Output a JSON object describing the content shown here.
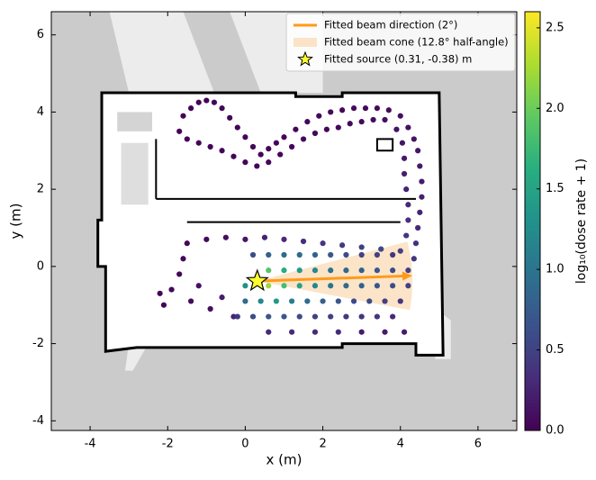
{
  "chart_data": {
    "type": "scatter",
    "xlabel": "x (m)",
    "ylabel": "y (m)",
    "xlim": [
      -5,
      7
    ],
    "ylim": [
      -4.25,
      6.6
    ],
    "xticks": [
      -4,
      -2,
      0,
      2,
      4,
      6
    ],
    "yticks": [
      -4,
      -2,
      0,
      2,
      4,
      6
    ],
    "colormap": "viridis",
    "clim": [
      0,
      2.6
    ],
    "colorbar_label": "log₁₀(dose rate + 1)",
    "colorbar_ticks": [
      {
        "value": 0,
        "label": "0.0"
      },
      {
        "value": 0.5,
        "label": "0.5"
      },
      {
        "value": 1,
        "label": "1.0"
      },
      {
        "value": 1.5,
        "label": "1.5"
      },
      {
        "value": 2,
        "label": "2.0"
      },
      {
        "value": 2.5,
        "label": "2.5"
      }
    ],
    "x": [
      -1.6,
      -1.4,
      -1.2,
      -1.0,
      -0.8,
      -0.6,
      -0.4,
      -0.2,
      0,
      0.2,
      0.4,
      0.6,
      0.8,
      1.0,
      1.3,
      1.6,
      1.9,
      2.2,
      2.5,
      2.8,
      3.1,
      3.4,
      3.7,
      4.0,
      4.2,
      4.35,
      4.45,
      4.5,
      4.55,
      4.55,
      4.5,
      4.45,
      4.4,
      4.35,
      -1.7,
      -1.5,
      -1.2,
      -0.9,
      -0.6,
      -0.3,
      0,
      0.3,
      0.6,
      0.9,
      1.2,
      1.5,
      1.8,
      2.1,
      2.4,
      2.7,
      3.0,
      3.3,
      3.6,
      3.9,
      4.05,
      4.1,
      4.1,
      4.15,
      4.2,
      4.2,
      4.15,
      -1.5,
      -1.0,
      -0.5,
      0,
      0.5,
      1.0,
      1.5,
      2.0,
      2.5,
      3.0,
      3.5,
      4.0,
      -1.6,
      -1.7,
      -1.9,
      -2.1,
      -2.2,
      -1.4,
      -1.2,
      -0.9,
      -0.6,
      -0.3,
      0.2,
      0.6,
      1.0,
      1.4,
      1.8,
      2.2,
      2.6,
      3.0,
      3.4,
      3.8,
      0.6,
      1.0,
      1.4,
      1.8,
      2.2,
      2.6,
      3.0,
      3.4,
      3.8,
      4.2,
      0.0,
      0.6,
      1.0,
      1.4,
      1.8,
      2.2,
      2.6,
      3.0,
      3.4,
      3.8,
      4.2,
      0.0,
      0.4,
      0.8,
      1.2,
      1.6,
      2.0,
      2.4,
      2.8,
      3.2,
      3.6,
      4.0,
      -0.2,
      0.2,
      0.6,
      1.0,
      1.4,
      1.8,
      2.2,
      2.6,
      3.0,
      3.4,
      3.8,
      0.6,
      1.2,
      1.8,
      2.4,
      3.0,
      3.6,
      4.1
    ],
    "y": [
      3.9,
      4.1,
      4.25,
      4.3,
      4.25,
      4.1,
      3.85,
      3.6,
      3.35,
      3.1,
      2.9,
      3.05,
      3.2,
      3.35,
      3.55,
      3.75,
      3.9,
      4.0,
      4.05,
      4.1,
      4.1,
      4.1,
      4.05,
      3.9,
      3.6,
      3.3,
      3.0,
      2.6,
      2.2,
      1.8,
      1.4,
      1.0,
      0.6,
      0.2,
      3.5,
      3.3,
      3.2,
      3.1,
      3.0,
      2.85,
      2.7,
      2.6,
      2.7,
      2.9,
      3.1,
      3.3,
      3.45,
      3.55,
      3.6,
      3.7,
      3.75,
      3.8,
      3.8,
      3.55,
      3.2,
      2.8,
      2.4,
      2.0,
      1.6,
      1.2,
      0.8,
      0.6,
      0.7,
      0.75,
      0.7,
      0.75,
      0.7,
      0.65,
      0.6,
      0.55,
      0.5,
      0.45,
      0.4,
      0.2,
      -0.2,
      -0.6,
      -1.0,
      -0.7,
      -0.9,
      -0.5,
      -1.1,
      -0.8,
      -1.3,
      0.3,
      0.3,
      0.3,
      0.3,
      0.3,
      0.3,
      0.3,
      0.3,
      0.3,
      0.3,
      -0.1,
      -0.1,
      -0.1,
      -0.1,
      -0.1,
      -0.1,
      -0.1,
      -0.1,
      -0.1,
      -0.1,
      -0.5,
      -0.5,
      -0.5,
      -0.5,
      -0.5,
      -0.5,
      -0.5,
      -0.5,
      -0.5,
      -0.5,
      -0.5,
      -0.9,
      -0.9,
      -0.9,
      -0.9,
      -0.9,
      -0.9,
      -0.9,
      -0.9,
      -0.9,
      -0.9,
      -0.9,
      -1.3,
      -1.3,
      -1.3,
      -1.3,
      -1.3,
      -1.3,
      -1.3,
      -1.3,
      -1.3,
      -1.3,
      -1.3,
      -1.7,
      -1.7,
      -1.7,
      -1.7,
      -1.7,
      -1.7,
      -1.7
    ],
    "values": [
      0.02,
      0.02,
      0.02,
      0.02,
      0.03,
      0.03,
      0.03,
      0.03,
      0.03,
      0.03,
      0.03,
      0.03,
      0.04,
      0.04,
      0.04,
      0.05,
      0.05,
      0.05,
      0.05,
      0.06,
      0.06,
      0.07,
      0.08,
      0.1,
      0.12,
      0.14,
      0.16,
      0.18,
      0.2,
      0.22,
      0.25,
      0.3,
      0.35,
      0.4,
      0.02,
      0.02,
      0.02,
      0.02,
      0.03,
      0.03,
      0.03,
      0.03,
      0.04,
      0.04,
      0.04,
      0.05,
      0.05,
      0.05,
      0.06,
      0.06,
      0.07,
      0.08,
      0.1,
      0.12,
      0.15,
      0.18,
      0.22,
      0.26,
      0.3,
      0.35,
      0.4,
      0.05,
      0.06,
      0.1,
      0.15,
      0.25,
      0.3,
      0.35,
      0.4,
      0.45,
      0.5,
      0.55,
      0.5,
      0.05,
      0.05,
      0.05,
      0.04,
      0.04,
      0.08,
      0.12,
      0.1,
      0.2,
      0.25,
      0.6,
      0.8,
      0.9,
      0.9,
      0.8,
      0.7,
      0.6,
      0.5,
      0.5,
      0.4,
      1.9,
      1.6,
      1.4,
      1.2,
      1.0,
      0.9,
      0.8,
      0.7,
      0.6,
      0.5,
      1.3,
      2.2,
      1.8,
      1.5,
      1.2,
      1.0,
      0.9,
      0.8,
      0.7,
      0.6,
      0.5,
      0.9,
      1.2,
      1.4,
      1.1,
      0.9,
      0.8,
      0.7,
      0.6,
      0.6,
      0.5,
      0.4,
      0.4,
      0.6,
      0.7,
      0.7,
      0.6,
      0.5,
      0.5,
      0.4,
      0.4,
      0.4,
      0.3,
      0.3,
      0.3,
      0.3,
      0.3,
      0.2,
      0.2,
      0.2
    ],
    "source": {
      "x": 0.31,
      "y": -0.38,
      "color": "#ffff33"
    },
    "beam": {
      "angle_deg": 2,
      "half_angle_deg": 12.8,
      "length": 4,
      "color": "#ff9a1a",
      "cone_color": "#fbd9b0"
    },
    "legend": [
      "Fitted beam direction (2°)",
      "Fitted beam cone (12.8° half-angle)",
      "Fitted source (0.31, -0.38) m"
    ]
  }
}
